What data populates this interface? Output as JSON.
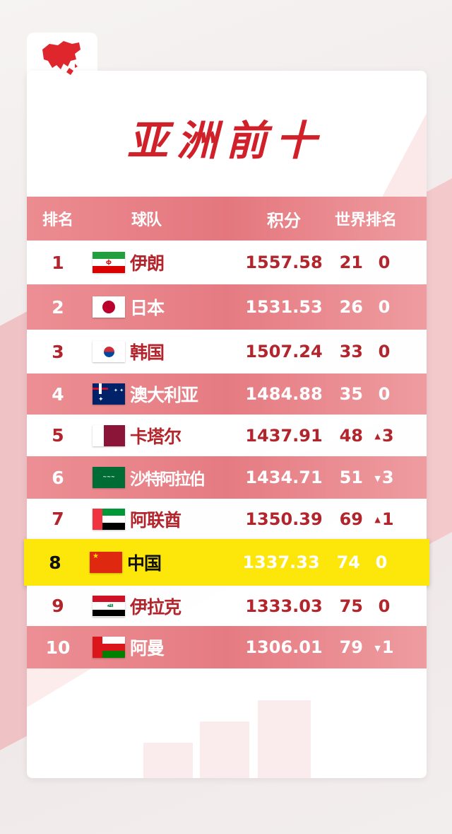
{
  "title": "亚洲前十",
  "header": {
    "rank": "排名",
    "team": "球队",
    "points": "积分",
    "world_rank": "世界排名"
  },
  "colors": {
    "accent": "#d0212a",
    "row_pink": "#e57b82",
    "highlight": "#fde60a"
  },
  "rows": [
    {
      "rank": "1",
      "flag": "iran-flag",
      "team": "伊朗",
      "points": "1557.58",
      "world": "21",
      "change": "0",
      "dir": ""
    },
    {
      "rank": "2",
      "flag": "japan-flag",
      "team": "日本",
      "points": "1531.53",
      "world": "26",
      "change": "0",
      "dir": ""
    },
    {
      "rank": "3",
      "flag": "korea-flag",
      "team": "韩国",
      "points": "1507.24",
      "world": "33",
      "change": "0",
      "dir": ""
    },
    {
      "rank": "4",
      "flag": "australia-flag",
      "team": "澳大利亚",
      "points": "1484.88",
      "world": "35",
      "change": "0",
      "dir": ""
    },
    {
      "rank": "5",
      "flag": "qatar-flag",
      "team": "卡塔尔",
      "points": "1437.91",
      "world": "48",
      "change": "3",
      "dir": "up"
    },
    {
      "rank": "6",
      "flag": "saudi-flag",
      "team": "沙特阿拉伯",
      "points": "1434.71",
      "world": "51",
      "change": "3",
      "dir": "down"
    },
    {
      "rank": "7",
      "flag": "uae-flag",
      "team": "阿联酋",
      "points": "1350.39",
      "world": "69",
      "change": "1",
      "dir": "up"
    },
    {
      "rank": "8",
      "flag": "china-flag",
      "team": "中国",
      "points": "1337.33",
      "world": "74",
      "change": "0",
      "dir": "",
      "highlight": true
    },
    {
      "rank": "9",
      "flag": "iraq-flag",
      "team": "伊拉克",
      "points": "1333.03",
      "world": "75",
      "change": "0",
      "dir": ""
    },
    {
      "rank": "10",
      "flag": "oman-flag",
      "team": "阿曼",
      "points": "1306.01",
      "world": "79",
      "change": "1",
      "dir": "down"
    }
  ]
}
